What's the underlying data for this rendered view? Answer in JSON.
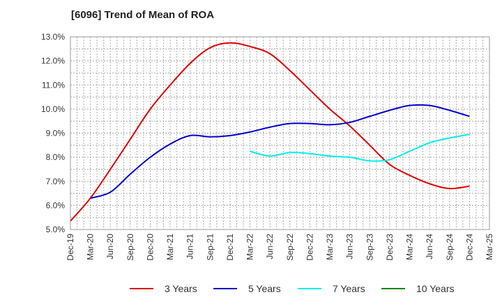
{
  "chart_data": {
    "type": "line",
    "title": "[6096]  Trend of Mean of ROA",
    "xlabel": "",
    "ylabel": "",
    "ylim": [
      5.0,
      13.0
    ],
    "yticks": [
      5.0,
      6.0,
      7.0,
      8.0,
      9.0,
      10.0,
      11.0,
      12.0,
      13.0
    ],
    "ytick_labels": [
      "5.0%",
      "6.0%",
      "7.0%",
      "8.0%",
      "9.0%",
      "10.0%",
      "11.0%",
      "12.0%",
      "13.0%"
    ],
    "categories": [
      "Dec-19",
      "Mar-20",
      "Jun-20",
      "Sep-20",
      "Dec-20",
      "Mar-21",
      "Jun-21",
      "Sep-21",
      "Dec-21",
      "Mar-22",
      "Jun-22",
      "Sep-22",
      "Dec-22",
      "Mar-23",
      "Jun-23",
      "Sep-23",
      "Dec-23",
      "Mar-24",
      "Jun-24",
      "Sep-24",
      "Dec-24",
      "Mar-25"
    ],
    "grid": true,
    "legend_position": "bottom",
    "series": [
      {
        "name": "3 Years",
        "color": "#dd0000",
        "values": [
          5.35,
          6.3,
          7.5,
          8.75,
          10.0,
          11.0,
          11.9,
          12.55,
          12.75,
          12.6,
          12.3,
          11.6,
          10.8,
          10.0,
          9.3,
          8.5,
          7.7,
          7.25,
          6.9,
          6.7,
          6.8,
          null
        ]
      },
      {
        "name": "5 Years",
        "color": "#0000cc",
        "values": [
          null,
          6.3,
          6.55,
          7.3,
          8.0,
          8.55,
          8.9,
          8.85,
          8.9,
          9.05,
          9.25,
          9.4,
          9.4,
          9.35,
          9.45,
          9.7,
          9.95,
          10.15,
          10.15,
          9.95,
          9.7,
          null
        ]
      },
      {
        "name": "7 Years",
        "color": "#00eeee",
        "values": [
          null,
          null,
          null,
          null,
          null,
          null,
          null,
          null,
          null,
          8.25,
          8.05,
          8.2,
          8.15,
          8.05,
          8.0,
          7.85,
          7.9,
          8.25,
          8.6,
          8.8,
          8.95,
          null
        ]
      },
      {
        "name": "10 Years",
        "color": "#008800",
        "values": [
          null,
          null,
          null,
          null,
          null,
          null,
          null,
          null,
          null,
          null,
          null,
          null,
          null,
          null,
          null,
          null,
          null,
          null,
          null,
          null,
          null,
          null
        ]
      }
    ]
  }
}
